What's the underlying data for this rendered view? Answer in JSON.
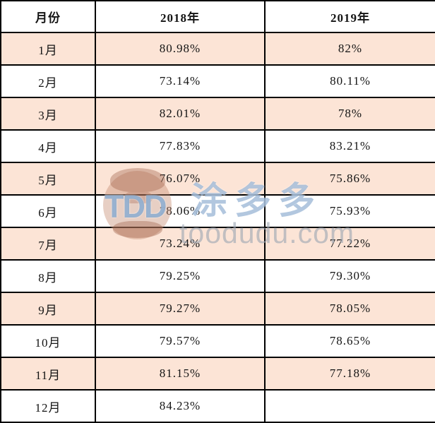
{
  "table": {
    "headers": [
      "月份",
      "2018年",
      "2019年"
    ],
    "rows": [
      {
        "month": "1月",
        "y2018": "80.98%",
        "y2019": "82%"
      },
      {
        "month": "2月",
        "y2018": "73.14%",
        "y2019": "80.11%"
      },
      {
        "month": "3月",
        "y2018": "82.01%",
        "y2019": "78%"
      },
      {
        "month": "4月",
        "y2018": "77.83%",
        "y2019": "83.21%"
      },
      {
        "month": "5月",
        "y2018": "76.07%",
        "y2019": "75.86%"
      },
      {
        "month": "6月",
        "y2018": "78.06%",
        "y2019": "75.93%"
      },
      {
        "month": "7月",
        "y2018": "73.24%",
        "y2019": "77.22%"
      },
      {
        "month": "8月",
        "y2018": "79.25%",
        "y2019": "79.30%"
      },
      {
        "month": "9月",
        "y2018": "79.27%",
        "y2019": "78.05%"
      },
      {
        "month": "10月",
        "y2018": "79.57%",
        "y2019": "78.65%"
      },
      {
        "month": "11月",
        "y2018": "81.15%",
        "y2019": "77.18%"
      },
      {
        "month": "12月",
        "y2018": "84.23%",
        "y2019": ""
      }
    ]
  },
  "watermark": {
    "tdd": "TDD",
    "brand": "涂多多",
    "site": "toodudu.com"
  },
  "colors": {
    "row_alternate": "#FCE4D6",
    "border": "#000000",
    "text": "#141414",
    "watermark_blue": "#82A4CB",
    "watermark_gray": "#9CA6B3",
    "watermark_logo_brown": "#C68C72"
  },
  "chart_data": {
    "type": "table",
    "title": "",
    "columns": [
      "月份",
      "2018年",
      "2019年"
    ],
    "categories": [
      "1月",
      "2月",
      "3月",
      "4月",
      "5月",
      "6月",
      "7月",
      "8月",
      "9月",
      "10月",
      "11月",
      "12月"
    ],
    "series": [
      {
        "name": "2018年",
        "values": [
          80.98,
          73.14,
          82.01,
          77.83,
          76.07,
          78.06,
          73.24,
          79.25,
          79.27,
          79.57,
          81.15,
          84.23
        ],
        "unit": "%"
      },
      {
        "name": "2019年",
        "values": [
          82,
          80.11,
          78,
          83.21,
          75.86,
          75.93,
          77.22,
          79.3,
          78.05,
          78.65,
          77.18,
          null
        ],
        "unit": "%"
      }
    ]
  }
}
